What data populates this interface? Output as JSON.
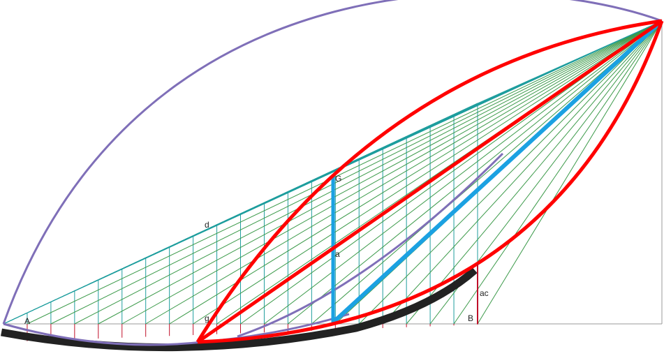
{
  "labels": {
    "A": "A",
    "B": "B",
    "G": "G",
    "a": "a",
    "d": "d",
    "g": "g",
    "ac": "ac"
  },
  "colors": {
    "background": "#ffffff",
    "outline_curve": "#7f6fb8",
    "red": "#ff0000",
    "blue": "#1ba1e2",
    "dark_band": "#222222",
    "grid_teal": "#1f9e9e",
    "fan_green": "#3c9a4a",
    "tick_red": "#c0102a",
    "axis_gray": "#999999"
  }
}
